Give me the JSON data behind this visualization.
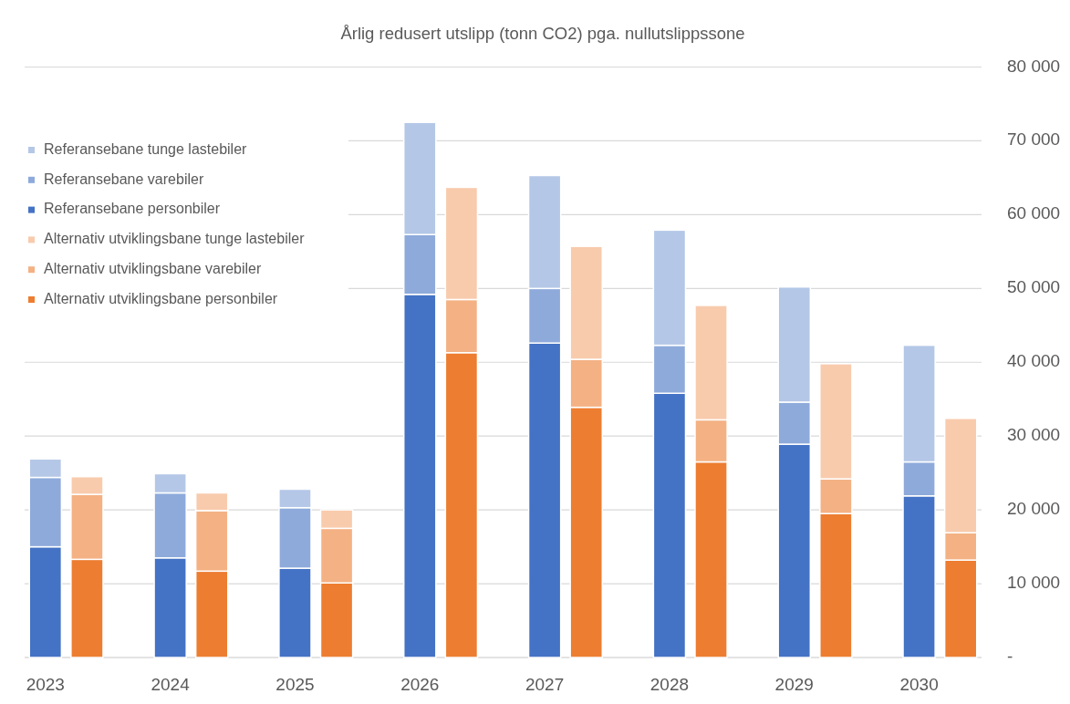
{
  "chart_data": {
    "type": "bar",
    "title": "Årlig redusert utslipp (tonn CO2) pga. nullutslippssone",
    "categories": [
      "2023",
      null,
      null,
      "2024",
      null,
      null,
      "2025",
      null,
      null,
      "2026",
      null,
      null,
      "2027",
      null,
      null,
      "2028",
      null,
      null,
      "2029",
      null,
      null,
      "2030",
      null
    ],
    "series": [
      {
        "name": "Alternativ utviklingsbane personbiler",
        "color": "#ed7d31",
        "values": [
          null,
          13300,
          null,
          null,
          11700,
          null,
          null,
          10100,
          null,
          null,
          41300,
          null,
          null,
          33900,
          null,
          null,
          26500,
          null,
          null,
          19500,
          null,
          null,
          13200
        ]
      },
      {
        "name": "Alternativ utviklingsbane varebiler",
        "color": "#f4b183",
        "values": [
          null,
          8800,
          null,
          null,
          8200,
          null,
          null,
          7400,
          null,
          null,
          7200,
          null,
          null,
          6500,
          null,
          null,
          5700,
          null,
          null,
          4700,
          null,
          null,
          3700
        ]
      },
      {
        "name": "Alternativ utviklingsbane tunge lastebiler",
        "color": "#f8cbad",
        "values": [
          null,
          2400,
          null,
          null,
          2400,
          null,
          null,
          2500,
          null,
          null,
          15200,
          null,
          null,
          15300,
          null,
          null,
          15500,
          null,
          null,
          15600,
          null,
          null,
          15500
        ]
      },
      {
        "name": "Referansebane personbiler",
        "color": "#4472c4",
        "values": [
          15000,
          null,
          null,
          13500,
          null,
          null,
          12100,
          null,
          null,
          49200,
          null,
          null,
          42600,
          null,
          null,
          35800,
          null,
          null,
          28900,
          null,
          null,
          21900,
          null
        ]
      },
      {
        "name": "Referansebane varebiler",
        "color": "#8eaadb",
        "values": [
          9400,
          null,
          null,
          8800,
          null,
          null,
          8200,
          null,
          null,
          8100,
          null,
          null,
          7400,
          null,
          null,
          6500,
          null,
          null,
          5700,
          null,
          null,
          4600,
          null
        ]
      },
      {
        "name": "Referansebane tunge lastebiler",
        "color": "#b4c7e7",
        "values": [
          2500,
          null,
          null,
          2600,
          null,
          null,
          2500,
          null,
          null,
          15200,
          null,
          null,
          15300,
          null,
          null,
          15600,
          null,
          null,
          15600,
          null,
          null,
          15800,
          null
        ]
      }
    ],
    "stacked": true,
    "ylim": [
      0,
      80000
    ],
    "yticks": [
      {
        "value": 0,
        "label": "-"
      },
      {
        "value": 10000,
        "label": "10 000"
      },
      {
        "value": 20000,
        "label": "20 000"
      },
      {
        "value": 30000,
        "label": "30 000"
      },
      {
        "value": 40000,
        "label": "40 000"
      },
      {
        "value": 50000,
        "label": "50 000"
      },
      {
        "value": 60000,
        "label": "60 000"
      },
      {
        "value": 70000,
        "label": "70 000"
      },
      {
        "value": 80000,
        "label": "80 000"
      }
    ],
    "grid": "y",
    "legend": "top left"
  }
}
